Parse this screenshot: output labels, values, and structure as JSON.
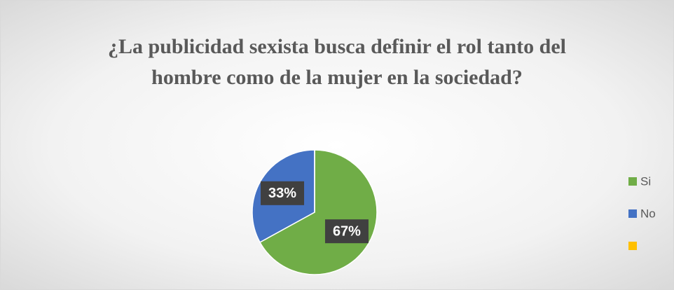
{
  "chart_data": {
    "type": "pie",
    "title": "¿La publicidad sexista busca definir el rol tanto del hombre como de la mujer en la sociedad?",
    "categories": [
      "Si",
      "No",
      null
    ],
    "values": [
      67,
      33,
      0
    ],
    "value_labels": [
      "67%",
      "33%",
      null
    ],
    "colors": [
      "#70ad47",
      "#4472c4",
      "#ffc000"
    ],
    "legend": "right"
  }
}
